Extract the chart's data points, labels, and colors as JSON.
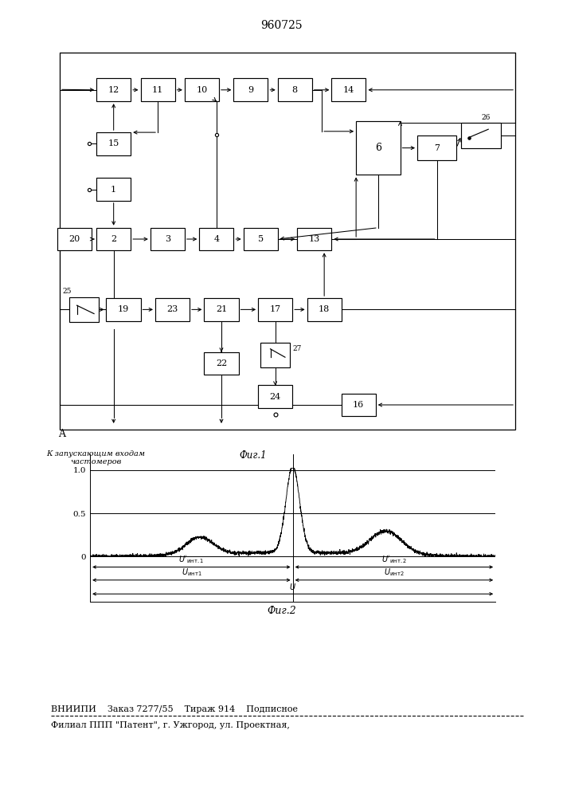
{
  "title": "960725",
  "fig1_label": "Фиг.1",
  "fig2_label": "Фиг.2",
  "caption_line1": "ВНИИПИ    Заказ 7277/55    Тираж 914    Подписное",
  "caption_line2": "Филиал ППП \"Патент\", г. Ужгород, ул. Проектная,",
  "bottom_label": "К запускающим входам\nчастомеров"
}
